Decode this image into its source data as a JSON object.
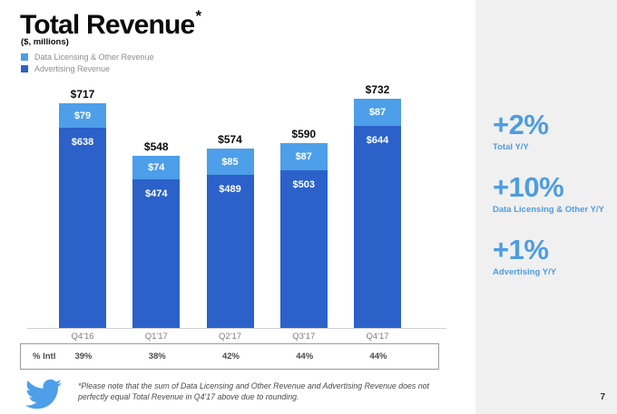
{
  "slide": {
    "title": "Total Revenue",
    "title_mark": "*",
    "subtitle": "($, millions)",
    "footnote": "*Please note that the sum of Data Licensing and Other Revenue and Advertising Revenue does not perfectly equal Total Revenue in Q4'17 above due to rounding.",
    "page_number": "7"
  },
  "legend": {
    "items": [
      {
        "label": "Data Licensing & Other Revenue",
        "color": "#4c9fe8"
      },
      {
        "label": "Advertising Revenue",
        "color": "#2b61c9"
      }
    ]
  },
  "chart_data": {
    "type": "bar",
    "stacked": true,
    "title": "Total Revenue ($, millions)",
    "xlabel": "",
    "ylabel": "$, millions",
    "grid": false,
    "legend_position": "top-left",
    "categories": [
      "Q4'16",
      "Q1'17",
      "Q2'17",
      "Q3'17",
      "Q4'17"
    ],
    "series": [
      {
        "name": "Advertising Revenue",
        "color": "#2b61c9",
        "values": [
          638,
          474,
          489,
          503,
          644
        ],
        "labels": [
          "$638",
          "$474",
          "$489",
          "$503",
          "$644"
        ]
      },
      {
        "name": "Data Licensing & Other Revenue",
        "color": "#4c9fe8",
        "values": [
          79,
          74,
          85,
          87,
          87
        ],
        "labels": [
          "$79",
          "$74",
          "$85",
          "$87",
          "$87"
        ]
      }
    ],
    "totals": [
      717,
      548,
      574,
      590,
      732
    ],
    "total_labels": [
      "$717",
      "$548",
      "$574",
      "$590",
      "$732"
    ]
  },
  "intl_table": {
    "row_label": "% Intl",
    "values": [
      "39%",
      "38%",
      "42%",
      "44%",
      "44%"
    ]
  },
  "sidebar": {
    "accent_color": "#4d9de0",
    "metrics": [
      {
        "value": "+2%",
        "label": "Total Y/Y"
      },
      {
        "value": "+10%",
        "label": "Data Licensing & Other Y/Y"
      },
      {
        "value": "+1%",
        "label": "Advertising Y/Y"
      }
    ]
  },
  "logo": {
    "name": "twitter-bird",
    "color": "#4c9fe8"
  }
}
